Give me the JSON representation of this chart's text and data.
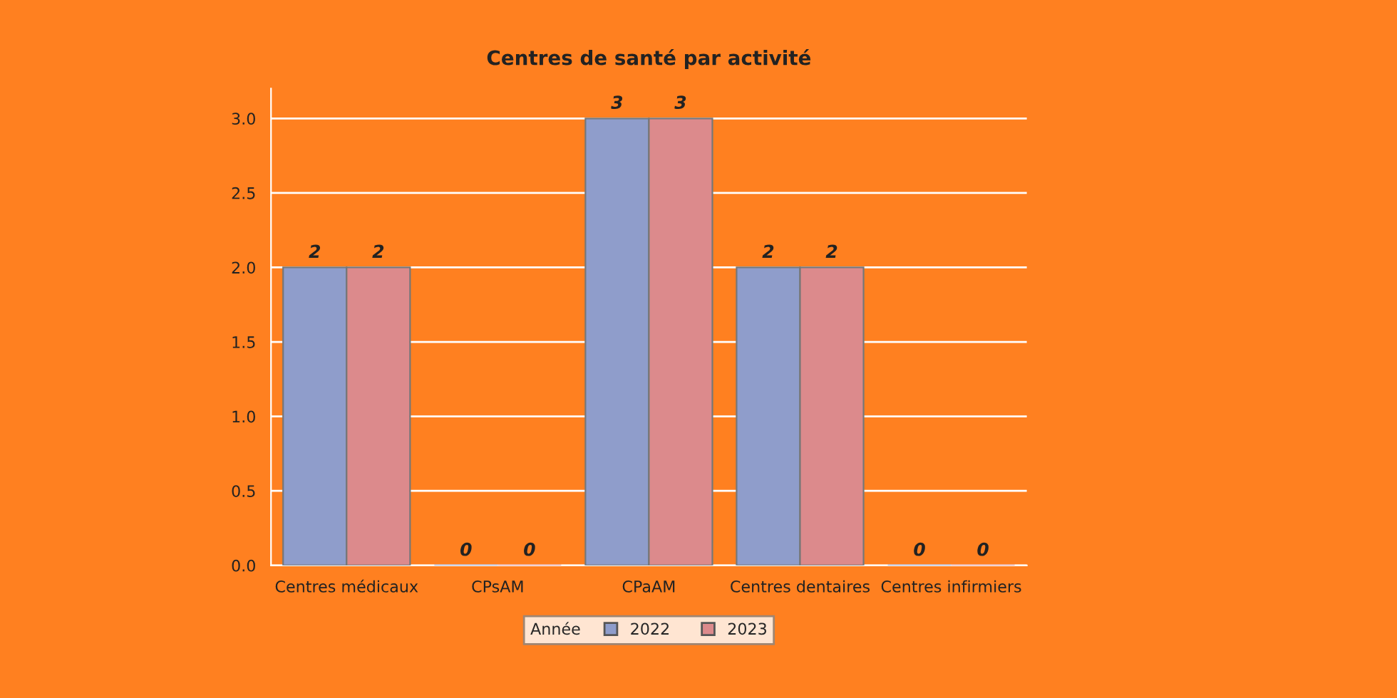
{
  "chart_data": {
    "type": "bar",
    "title": "Centres de santé par activité",
    "categories": [
      "Centres médicaux",
      "CPsAM",
      "CPaAM",
      "Centres dentaires",
      "Centres infirmiers"
    ],
    "series": [
      {
        "name": "2022",
        "color": "#8f9dcb",
        "values": [
          2,
          0,
          3,
          2,
          0
        ]
      },
      {
        "name": "2023",
        "color": "#dc8a8c",
        "values": [
          2,
          0,
          3,
          2,
          0
        ]
      }
    ],
    "legend_title": "Année",
    "legend": "bottom",
    "ylim": [
      0,
      3.2
    ],
    "yticks": [
      {
        "value": 0,
        "label": "0.0"
      },
      {
        "value": 0.5,
        "label": "0.5"
      },
      {
        "value": 1,
        "label": "1.0"
      },
      {
        "value": 1.5,
        "label": "1.5"
      },
      {
        "value": 2,
        "label": "2.0"
      },
      {
        "value": 2.5,
        "label": "2.5"
      },
      {
        "value": 3,
        "label": "3.0"
      }
    ],
    "grid": "y",
    "data_labels": true
  }
}
